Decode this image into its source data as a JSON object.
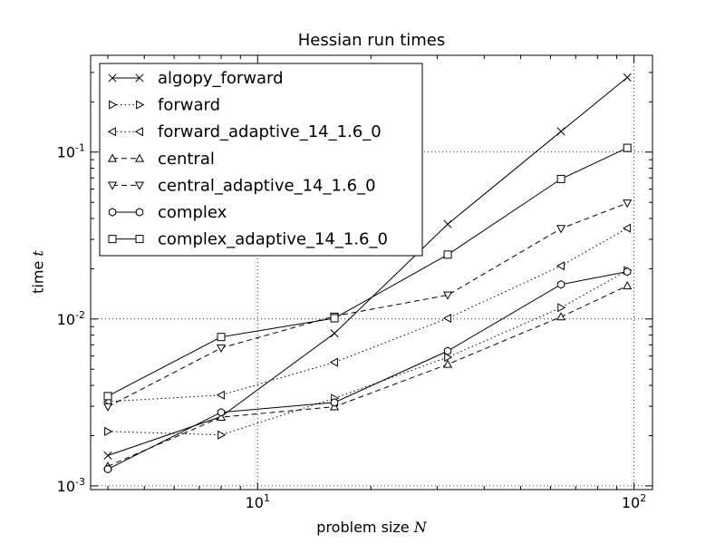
{
  "chart_data": {
    "type": "line",
    "title": "Hessian run times",
    "xlabel_text": "problem size",
    "xlabel_symbol": "N",
    "ylabel_text": "time",
    "ylabel_symbol": "t",
    "xscale": "log",
    "yscale": "log",
    "xlim": [
      3.6,
      112
    ],
    "ylim": [
      0.00095,
      0.38
    ],
    "x_ticks": [
      {
        "base": "10",
        "exp": "1",
        "value": 10
      },
      {
        "base": "10",
        "exp": "2",
        "value": 100
      }
    ],
    "y_ticks": [
      {
        "base": "10",
        "exp": "-3",
        "value": 0.001
      },
      {
        "base": "10",
        "exp": "-2",
        "value": 0.01
      },
      {
        "base": "10",
        "exp": "-1",
        "value": 0.1
      }
    ],
    "grid": true,
    "legend_position": "top-left",
    "x": [
      4,
      8,
      16,
      32,
      64,
      96
    ],
    "series": [
      {
        "name": "algopy_forward",
        "marker": "x",
        "line": "solid",
        "values": [
          0.00152,
          0.0026,
          0.0082,
          0.037,
          0.133,
          0.28
        ]
      },
      {
        "name": "forward",
        "marker": "tri-right",
        "line": "dotted",
        "values": [
          0.00212,
          0.00202,
          0.00335,
          0.0059,
          0.0117,
          0.0195
        ]
      },
      {
        "name": "forward_adaptive_14_1.6_0",
        "marker": "tri-left",
        "line": "dotted",
        "values": [
          0.0032,
          0.0035,
          0.0055,
          0.0101,
          0.0208,
          0.035
        ]
      },
      {
        "name": "central",
        "marker": "tri-up",
        "line": "dashed",
        "values": [
          0.00131,
          0.00258,
          0.00298,
          0.00535,
          0.0103,
          0.0158
        ]
      },
      {
        "name": "central_adaptive_14_1.6_0",
        "marker": "tri-down",
        "line": "dashed",
        "values": [
          0.00298,
          0.0067,
          0.0104,
          0.0139,
          0.0348,
          0.0495
        ]
      },
      {
        "name": "complex",
        "marker": "hexagon",
        "line": "solid",
        "values": [
          0.00126,
          0.00276,
          0.00316,
          0.00643,
          0.0161,
          0.0192
        ]
      },
      {
        "name": "complex_adaptive_14_1.6_0",
        "marker": "square",
        "line": "solid",
        "values": [
          0.00345,
          0.0078,
          0.0101,
          0.0243,
          0.069,
          0.106
        ]
      }
    ]
  }
}
